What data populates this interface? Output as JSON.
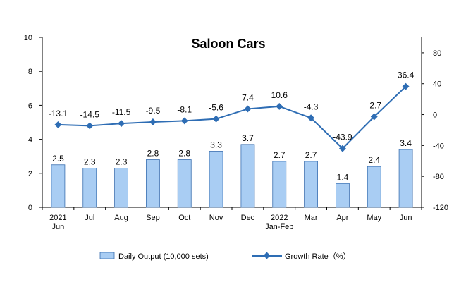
{
  "chart_data": {
    "type": "bar",
    "title": "Saloon Cars",
    "categories": [
      [
        "2021",
        "Jun"
      ],
      [
        "Jul"
      ],
      [
        "Aug"
      ],
      [
        "Sep"
      ],
      [
        "Oct"
      ],
      [
        "Nov"
      ],
      [
        "Dec"
      ],
      [
        "2022",
        "Jan-Feb"
      ],
      [
        "Mar"
      ],
      [
        "Apr"
      ],
      [
        "May"
      ],
      [
        "Jun"
      ]
    ],
    "series": [
      {
        "name": "Daily Output (10,000 sets)",
        "type": "bar",
        "axis": "left",
        "values": [
          2.5,
          2.3,
          2.3,
          2.8,
          2.8,
          3.3,
          3.7,
          2.7,
          2.7,
          1.4,
          2.4,
          3.4
        ],
        "labels": [
          "2.5",
          "2.3",
          "2.3",
          "2.8",
          "2.8",
          "3.3",
          "3.7",
          "2.7",
          "2.7",
          "1.4",
          "2.4",
          "3.4"
        ],
        "color": "#a9cdf3"
      },
      {
        "name": "Growth Rate（%）",
        "type": "line",
        "axis": "right",
        "values": [
          -13.1,
          -14.5,
          -11.5,
          -9.5,
          -8.1,
          -5.6,
          7.4,
          10.6,
          -4.3,
          -43.9,
          -2.7,
          36.4
        ],
        "labels": [
          "-13.1",
          "-14.5",
          "-11.5",
          "-9.5",
          "-8.1",
          "-5.6",
          "7.4",
          "10.6",
          "-4.3",
          "-43.9",
          "-2.7",
          "36.4"
        ],
        "color": "#2e6db4"
      }
    ],
    "y_left": {
      "min": 0,
      "max": 10,
      "ticks": [
        0,
        2,
        4,
        6,
        8,
        10
      ]
    },
    "y_right": {
      "min": -120,
      "max": 100,
      "ticks": [
        -120,
        -80,
        -40,
        0,
        40,
        80
      ]
    },
    "legend_position": "bottom",
    "grid": false
  }
}
